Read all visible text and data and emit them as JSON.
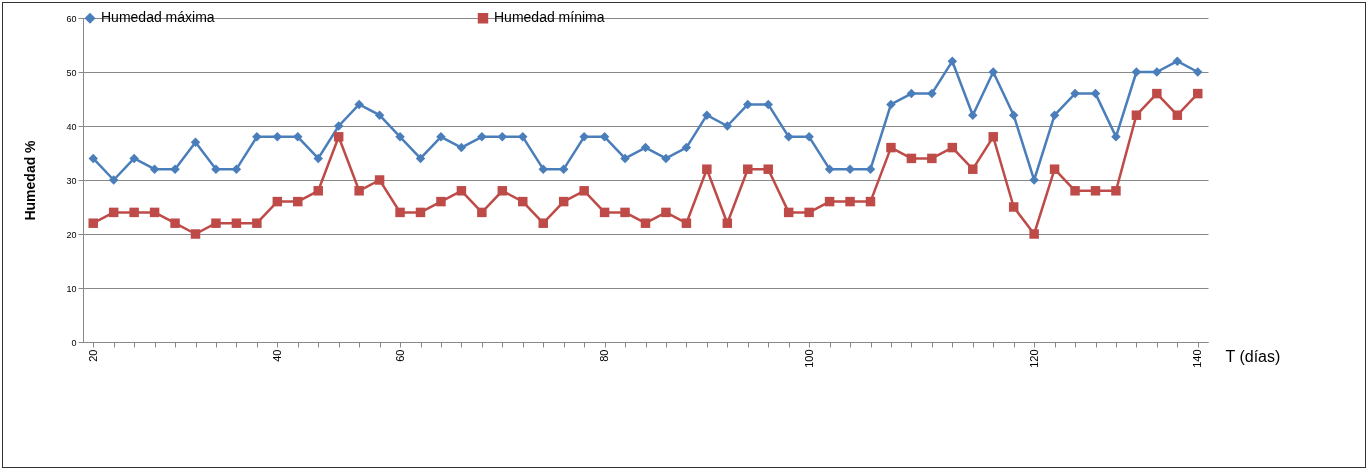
{
  "chart_data": {
    "type": "line",
    "xlabel": "T (días)",
    "ylabel": "Humedad %",
    "categories": [
      "20",
      null,
      null,
      null,
      null,
      null,
      null,
      null,
      null,
      "40",
      null,
      null,
      null,
      null,
      null,
      "60",
      null,
      null,
      null,
      null,
      null,
      null,
      null,
      null,
      null,
      "80",
      null,
      null,
      null,
      null,
      null,
      null,
      null,
      null,
      null,
      "100",
      null,
      null,
      null,
      null,
      null,
      null,
      null,
      null,
      null,
      null,
      "120",
      null,
      null,
      null,
      null,
      null,
      null,
      null,
      "140"
    ],
    "series": [
      {
        "name": "Humedad máxima",
        "color": "#4a7ebb",
        "marker": "diamond",
        "values": [
          34,
          30,
          34,
          32,
          32,
          37,
          32,
          32,
          38,
          38,
          38,
          34,
          40,
          44,
          42,
          38,
          34,
          38,
          36,
          38,
          38,
          38,
          32,
          32,
          38,
          38,
          34,
          36,
          34,
          36,
          42,
          40,
          44,
          44,
          38,
          38,
          32,
          32,
          32,
          44,
          46,
          46,
          52,
          42,
          50,
          42,
          30,
          42,
          46,
          46,
          38,
          50,
          50,
          52,
          50
        ]
      },
      {
        "name": "Humedad mínima",
        "color": "#be4b48",
        "marker": "square",
        "values": [
          22,
          24,
          24,
          24,
          22,
          20,
          22,
          22,
          22,
          26,
          26,
          28,
          38,
          28,
          30,
          24,
          24,
          26,
          28,
          24,
          28,
          26,
          22,
          26,
          28,
          24,
          24,
          22,
          24,
          22,
          32,
          22,
          32,
          32,
          24,
          24,
          26,
          26,
          26,
          36,
          34,
          34,
          36,
          32,
          38,
          25,
          20,
          32,
          28,
          28,
          28,
          42,
          46,
          42,
          46
        ]
      }
    ],
    "ylim": [
      0,
      60
    ],
    "yticks": [
      0,
      10,
      20,
      30,
      40,
      50,
      60
    ],
    "grid": "y",
    "legend": "top",
    "line_style": "solid"
  }
}
